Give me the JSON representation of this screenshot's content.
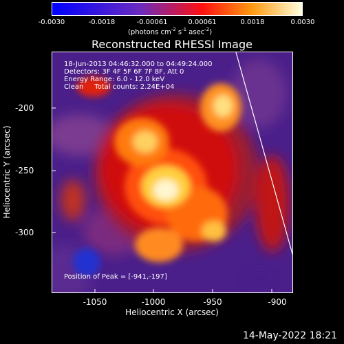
{
  "colorbar": {
    "tick_labels": [
      "-0.0030",
      "-0.0018",
      "-0.00061",
      "0.00061",
      "0.0018",
      "0.0030"
    ],
    "units": "(photons cm",
    "units_exp1": "-2",
    "units_mid": " s",
    "units_exp2": "-1",
    "units_mid2": " asec",
    "units_exp3": "-2",
    "units_end": ")",
    "colors": [
      "#0000ff",
      "#6a2bbf",
      "#ff1010",
      "#ffffe0"
    ]
  },
  "title": "Reconstructed RHESSI Image",
  "annotations": {
    "time": "18-Jun-2013 04:46:32.000 to 04:49:24.000",
    "detectors": "Detectors: 3F 4F 5F 6F 7F 8F, Att 0",
    "energy": "Energy Range: 6.0 - 12.0 keV",
    "clean": "Clean     Total counts: 2.24E+04",
    "peak": "Position of Peak = [-941,-197]"
  },
  "axes": {
    "xlabel": "Heliocentric X (arcsec)",
    "ylabel": "Heliocentric Y (arcsec)",
    "xticks": [
      "-1050",
      "-1000",
      "-950",
      "-900"
    ],
    "yticks": [
      "-200",
      "-250",
      "-300"
    ]
  },
  "footer": "14-May-2022 18:21"
}
